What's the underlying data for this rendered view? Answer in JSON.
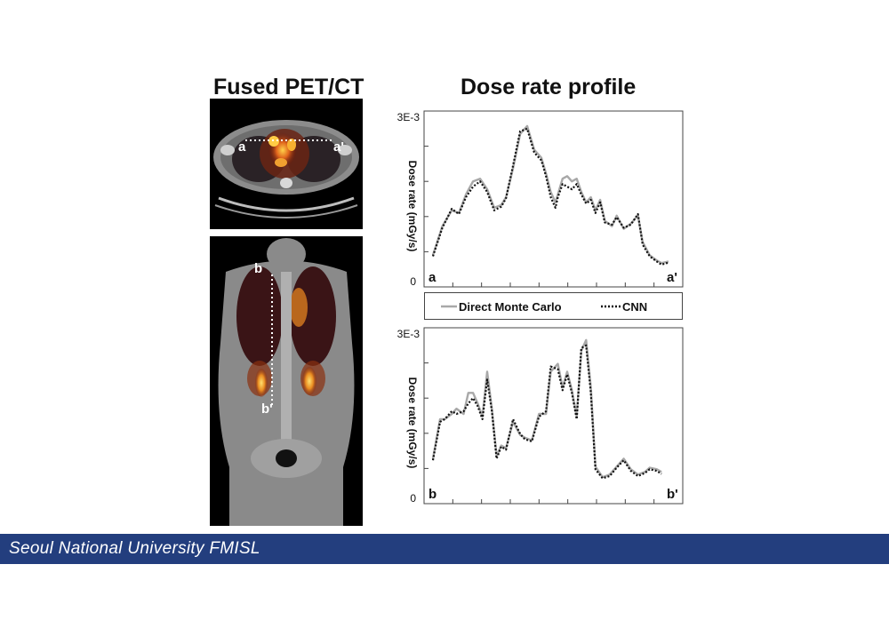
{
  "titles": {
    "left": "Fused PET/CT",
    "right": "Dose rate profile"
  },
  "images": {
    "axial": {
      "start_label": "a",
      "end_label": "a'"
    },
    "coronal": {
      "start_label": "b",
      "end_label": "b'"
    }
  },
  "legend": {
    "series1": "Direct Monte Carlo",
    "series2": "CNN"
  },
  "colors": {
    "monte_carlo": "#a8a8a8",
    "cnn": "#111111",
    "footer": "#233e7e"
  },
  "footer": {
    "text": "Seoul National University FMISL"
  },
  "chart_data": [
    {
      "type": "line",
      "ylabel": "Dose rate (mGy/s)",
      "ytick_top": "3E-3",
      "ytick_bottom": "0",
      "ylim": [
        0,
        0.003
      ],
      "x_start_label": "a",
      "x_end_label": "a'",
      "xlim": [
        0,
        1
      ],
      "series": [
        {
          "name": "Direct Monte Carlo",
          "x": [
            0.0,
            0.04,
            0.08,
            0.11,
            0.14,
            0.17,
            0.2,
            0.23,
            0.26,
            0.29,
            0.31,
            0.34,
            0.37,
            0.4,
            0.43,
            0.46,
            0.48,
            0.5,
            0.52,
            0.53,
            0.55,
            0.57,
            0.59,
            0.61,
            0.63,
            0.65,
            0.67,
            0.69,
            0.71,
            0.73,
            0.76,
            0.78,
            0.81,
            0.84,
            0.87,
            0.89,
            0.92,
            0.95,
            0.97,
            1.0
          ],
          "y": [
            0.0004,
            0.00095,
            0.00125,
            0.0012,
            0.00155,
            0.0018,
            0.00185,
            0.00165,
            0.0013,
            0.00135,
            0.0015,
            0.00205,
            0.0027,
            0.00285,
            0.0024,
            0.00225,
            0.00195,
            0.0016,
            0.0014,
            0.00155,
            0.00185,
            0.0019,
            0.0018,
            0.00185,
            0.0016,
            0.0014,
            0.0015,
            0.00125,
            0.00145,
            0.00105,
            0.00095,
            0.00115,
            0.0009,
            0.001,
            0.00115,
            0.00065,
            0.0004,
            0.0003,
            0.00025,
            0.00028
          ]
        },
        {
          "name": "CNN",
          "x": [
            0.0,
            0.04,
            0.08,
            0.11,
            0.14,
            0.17,
            0.2,
            0.23,
            0.26,
            0.29,
            0.31,
            0.34,
            0.37,
            0.4,
            0.43,
            0.46,
            0.48,
            0.5,
            0.52,
            0.53,
            0.55,
            0.57,
            0.59,
            0.61,
            0.63,
            0.65,
            0.67,
            0.69,
            0.71,
            0.73,
            0.76,
            0.78,
            0.81,
            0.84,
            0.87,
            0.89,
            0.92,
            0.95,
            0.97,
            1.0
          ],
          "y": [
            0.00038,
            0.00092,
            0.00128,
            0.00118,
            0.0015,
            0.0017,
            0.0018,
            0.0016,
            0.00125,
            0.00132,
            0.00148,
            0.0021,
            0.00275,
            0.0028,
            0.00235,
            0.0022,
            0.0019,
            0.0015,
            0.0013,
            0.0015,
            0.00175,
            0.0017,
            0.00165,
            0.00175,
            0.00155,
            0.00138,
            0.00145,
            0.0012,
            0.0014,
            0.00102,
            0.00098,
            0.00112,
            0.00092,
            0.00098,
            0.00118,
            0.0006,
            0.00038,
            0.00028,
            0.00022,
            0.00026
          ]
        }
      ]
    },
    {
      "type": "line",
      "ylabel": "Dose rate (mGy/s)",
      "ytick_top": "3E-3",
      "ytick_bottom": "0",
      "ylim": [
        0,
        0.003
      ],
      "x_start_label": "b",
      "x_end_label": "b'",
      "xlim": [
        0,
        1
      ],
      "series": [
        {
          "name": "Direct Monte Carlo",
          "x": [
            0.0,
            0.03,
            0.05,
            0.08,
            0.1,
            0.13,
            0.15,
            0.17,
            0.19,
            0.21,
            0.23,
            0.25,
            0.27,
            0.29,
            0.31,
            0.34,
            0.37,
            0.39,
            0.42,
            0.45,
            0.48,
            0.5,
            0.53,
            0.55,
            0.57,
            0.59,
            0.61,
            0.63,
            0.65,
            0.67,
            0.69,
            0.72,
            0.75,
            0.78,
            0.81,
            0.84,
            0.87,
            0.9,
            0.92,
            0.95,
            0.97
          ],
          "y": [
            0.00065,
            0.0014,
            0.0014,
            0.0015,
            0.0016,
            0.0015,
            0.0019,
            0.0019,
            0.0017,
            0.00145,
            0.0023,
            0.0016,
            0.0007,
            0.0009,
            0.00085,
            0.00135,
            0.0011,
            0.00105,
            0.001,
            0.0015,
            0.0015,
            0.0023,
            0.00245,
            0.002,
            0.0023,
            0.00195,
            0.00145,
            0.0027,
            0.0029,
            0.002,
            0.0005,
            0.0003,
            0.00035,
            0.0005,
            0.00065,
            0.00045,
            0.00035,
            0.0004,
            0.00048,
            0.00045,
            0.0004
          ]
        },
        {
          "name": "CNN",
          "x": [
            0.0,
            0.03,
            0.05,
            0.08,
            0.1,
            0.13,
            0.15,
            0.17,
            0.19,
            0.21,
            0.23,
            0.25,
            0.27,
            0.29,
            0.31,
            0.34,
            0.37,
            0.39,
            0.42,
            0.45,
            0.48,
            0.5,
            0.53,
            0.55,
            0.57,
            0.59,
            0.61,
            0.63,
            0.65,
            0.67,
            0.69,
            0.72,
            0.75,
            0.78,
            0.81,
            0.84,
            0.87,
            0.9,
            0.92,
            0.95,
            0.97
          ],
          "y": [
            0.00062,
            0.00135,
            0.0014,
            0.00155,
            0.0015,
            0.00155,
            0.0017,
            0.0018,
            0.00165,
            0.0014,
            0.00215,
            0.00155,
            0.00065,
            0.00088,
            0.00082,
            0.0014,
            0.00112,
            0.00102,
            0.00098,
            0.00145,
            0.00155,
            0.0024,
            0.00235,
            0.00195,
            0.00225,
            0.0019,
            0.0014,
            0.00275,
            0.0028,
            0.0019,
            0.00045,
            0.00028,
            0.00032,
            0.00048,
            0.00062,
            0.00042,
            0.00032,
            0.00038,
            0.00045,
            0.00042,
            0.00036
          ]
        }
      ]
    }
  ]
}
